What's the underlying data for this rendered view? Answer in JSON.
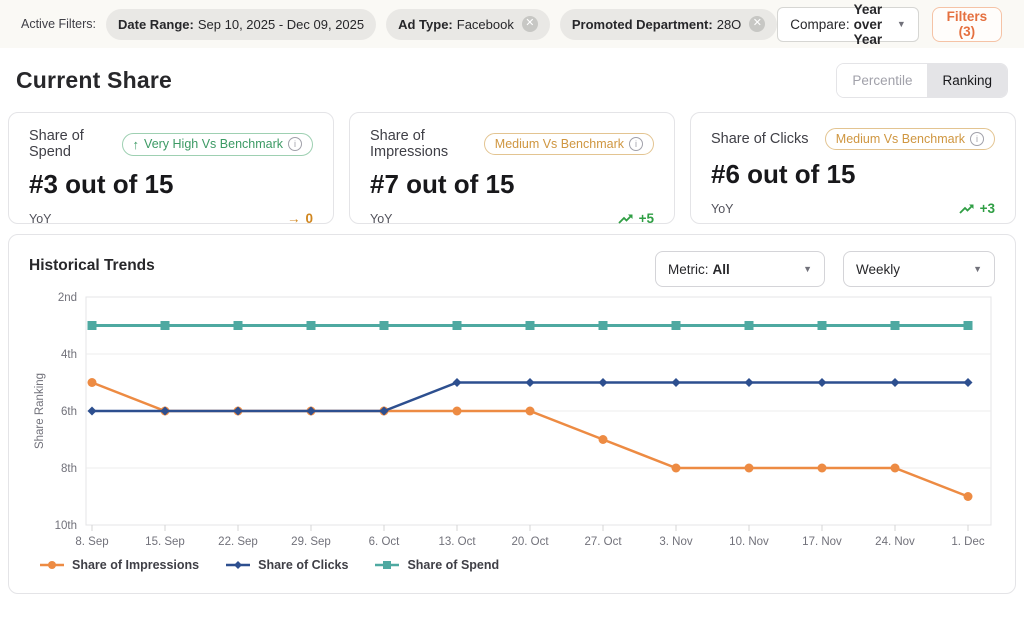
{
  "filter_bar": {
    "label": "Active Filters:",
    "chips": [
      {
        "label": "Date Range:",
        "value": "Sep 10, 2025 - Dec 09, 2025",
        "removable": false
      },
      {
        "label": "Ad Type:",
        "value": "Facebook",
        "removable": true
      },
      {
        "label": "Promoted Department:",
        "value": "28O",
        "removable": true
      }
    ],
    "compare": {
      "label": "Compare:",
      "value": "Year over Year"
    },
    "filters_button": "Filters (3)"
  },
  "current_share": {
    "title": "Current Share",
    "toggle": {
      "options": [
        "Percentile",
        "Ranking"
      ],
      "selected": "Ranking"
    },
    "cards": [
      {
        "title": "Share of Spend",
        "badge": "Very High Vs Benchmark",
        "badge_level": "very_high",
        "rank": "#3 out of 15",
        "yoy_label": "YoY",
        "change": "0",
        "change_type": "flat"
      },
      {
        "title": "Share of Impressions",
        "badge": "Medium Vs Benchmark",
        "badge_level": "medium",
        "rank": "#7 out of 15",
        "yoy_label": "YoY",
        "change": "+5",
        "change_type": "up"
      },
      {
        "title": "Share of Clicks",
        "badge": "Medium Vs Benchmark",
        "badge_level": "medium",
        "rank": "#6 out of 15",
        "yoy_label": "YoY",
        "change": "+3",
        "change_type": "up"
      }
    ]
  },
  "historical_trends": {
    "title": "Historical Trends",
    "metric_dropdown": {
      "label": "Metric:",
      "value": "All"
    },
    "period_dropdown": {
      "value": "Weekly"
    }
  },
  "chart_data": {
    "type": "line",
    "title": "Historical Trends",
    "ylabel": "Share Ranking",
    "y_axis_inverted": true,
    "ylim": [
      2,
      10
    ],
    "y_ticks": [
      {
        "rank": 2,
        "label": "2nd"
      },
      {
        "rank": 4,
        "label": "4th"
      },
      {
        "rank": 6,
        "label": "6th"
      },
      {
        "rank": 8,
        "label": "8th"
      },
      {
        "rank": 10,
        "label": "10th"
      }
    ],
    "grid": true,
    "legend_position": "bottom-left",
    "categories": [
      "8. Sep",
      "15. Sep",
      "22. Sep",
      "29. Sep",
      "6. Oct",
      "13. Oct",
      "20. Oct",
      "27. Oct",
      "3. Nov",
      "10. Nov",
      "17. Nov",
      "24. Nov",
      "1. Dec"
    ],
    "series": [
      {
        "name": "Share of Impressions",
        "color": "#ED8B43",
        "marker": "circle",
        "values": [
          5,
          6,
          6,
          6,
          6,
          6,
          6,
          7,
          8,
          8,
          8,
          8,
          9
        ]
      },
      {
        "name": "Share of Clicks",
        "color": "#2D4F8F",
        "marker": "diamond",
        "values": [
          6,
          6,
          6,
          6,
          6,
          5,
          5,
          5,
          5,
          5,
          5,
          5,
          5
        ]
      },
      {
        "name": "Share of Spend",
        "color": "#4EA9A1",
        "marker": "square",
        "values": [
          3,
          3,
          3,
          3,
          3,
          3,
          3,
          3,
          3,
          3,
          3,
          3,
          3
        ]
      }
    ]
  },
  "colors": {
    "accent_orange": "#e5703f",
    "badge_green": "#3c9a64",
    "badge_amber": "#cf9640",
    "change_flat": "#d0861f",
    "change_up": "#2f9e44",
    "axis_text": "#71717a",
    "grid_line": "#ececec"
  }
}
